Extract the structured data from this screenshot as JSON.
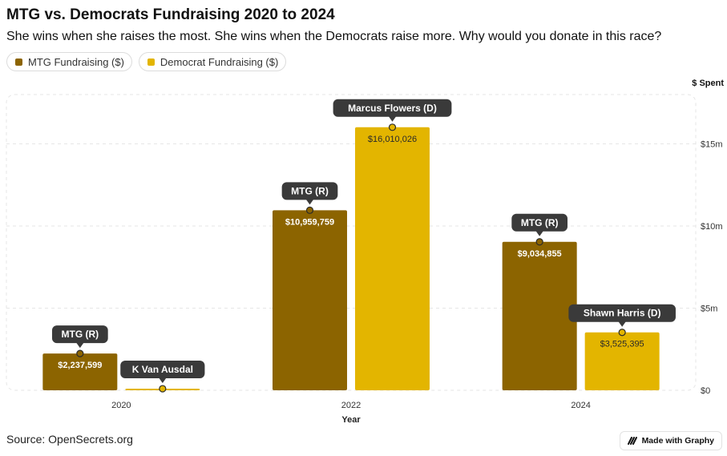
{
  "title": "MTG vs. Democrats Fundraising 2020 to 2024",
  "subtitle": "She wins when she raises the most. She wins when the Democrats raise more. Why would you donate in this race?",
  "legend": [
    {
      "label": "MTG Fundraising ($)",
      "color": "#8c6400"
    },
    {
      "label": "Democrat Fundraising ($)",
      "color": "#e3b500"
    }
  ],
  "source": "Source: OpenSecrets.org",
  "badge": {
    "label": "Made with Graphy",
    "icon": "graphy-logo-icon"
  },
  "chart_data": {
    "type": "bar",
    "categories": [
      "2020",
      "2022",
      "2024"
    ],
    "xlabel": "Year",
    "ylabel": "$ Spent",
    "ylim": [
      0,
      18000000
    ],
    "yticks": [
      {
        "value": 0,
        "label": "$0"
      },
      {
        "value": 5000000,
        "label": "$5m"
      },
      {
        "value": 10000000,
        "label": "$10m"
      },
      {
        "value": 15000000,
        "label": "$15m"
      }
    ],
    "grid": true,
    "legend_position": "top-left",
    "series": [
      {
        "name": "MTG Fundraising ($)",
        "color": "#8c6400",
        "values": [
          2237599,
          10959759,
          9034855
        ],
        "value_labels": [
          "$2,237,599",
          "$10,959,759",
          "$9,034,855"
        ],
        "annotations": [
          "MTG (R)",
          "MTG (R)",
          "MTG (R)"
        ]
      },
      {
        "name": "Democrat Fundraising ($)",
        "color": "#e3b500",
        "values": [
          95000,
          16010026,
          3525395
        ],
        "value_labels": [
          "",
          "$16,010,026",
          "$3,525,395"
        ],
        "annotations": [
          "K Van Ausdal",
          "Marcus Flowers (D)",
          "Shawn Harris (D)"
        ]
      }
    ]
  }
}
